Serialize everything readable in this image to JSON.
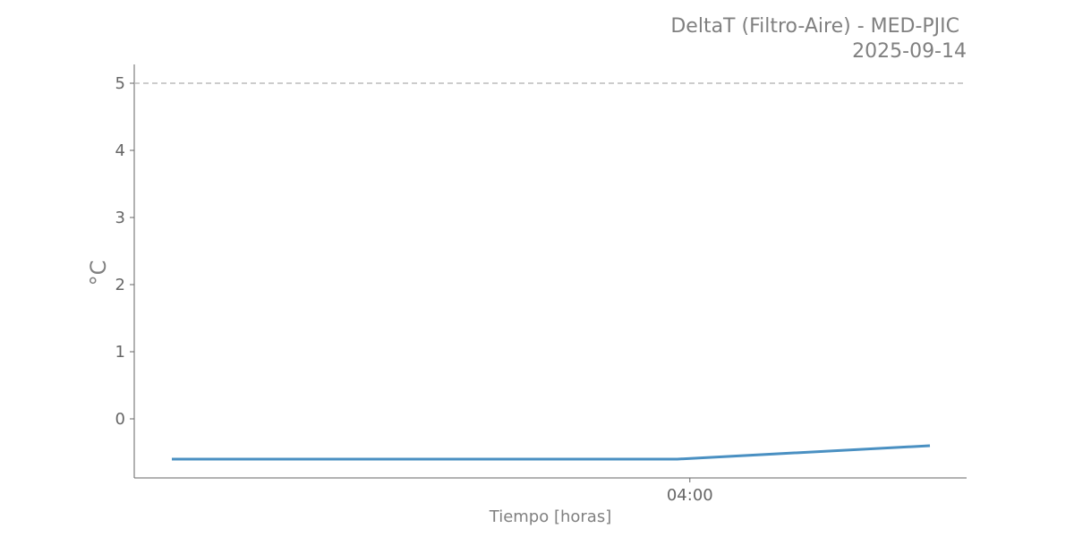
{
  "chart_data": {
    "type": "line",
    "title": "DeltaT (Filtro-Aire) - MED-PJIC",
    "subtitle": "2025-09-14",
    "xlabel": "Tiempo [horas]",
    "ylabel": "°C",
    "x": [
      "03:19",
      "03:59",
      "04:19"
    ],
    "series": [
      {
        "values": [
          -0.6,
          -0.6,
          -0.4
        ],
        "color": "#4a90c2"
      }
    ],
    "x_ticks": [
      "04:00"
    ],
    "y_ticks": [
      0,
      1,
      2,
      3,
      4,
      5
    ],
    "ylim": [
      -0.89,
      5.27
    ],
    "reference_line": {
      "value": 5,
      "style": "dashed",
      "color": "#bbbbbb"
    },
    "grid": false
  }
}
